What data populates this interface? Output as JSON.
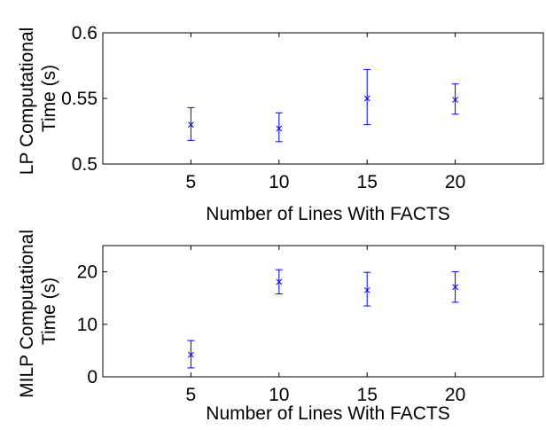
{
  "colors": {
    "series": "#0000ff",
    "axis": "#000000",
    "background": "#ffffff"
  },
  "chart_data": [
    {
      "type": "scatter",
      "title": "",
      "xlabel": "Number of Lines With FACTS",
      "ylabel": [
        "LP Computational",
        "Time (s)"
      ],
      "xlim": [
        0,
        25
      ],
      "ylim": [
        0.5,
        0.6
      ],
      "xticks": [
        5,
        10,
        15,
        20
      ],
      "xtick_labels": [
        "5",
        "10",
        "15",
        "20"
      ],
      "yticks": [
        0.5,
        0.55,
        0.6
      ],
      "ytick_labels": [
        "0.5",
        "0.55",
        "0.6"
      ],
      "grid": false,
      "marker": "x",
      "error_bars": true,
      "series": [
        {
          "x": [
            5,
            10,
            15,
            20
          ],
          "y": [
            0.53,
            0.527,
            0.55,
            0.549
          ],
          "y_low": [
            0.518,
            0.517,
            0.53,
            0.538
          ],
          "y_high": [
            0.543,
            0.539,
            0.572,
            0.561
          ]
        }
      ]
    },
    {
      "type": "scatter",
      "title": "",
      "xlabel": "Number of Lines With FACTS",
      "ylabel": [
        "MILP Computational",
        "Time (s)"
      ],
      "xlim": [
        0,
        25
      ],
      "ylim": [
        0,
        25
      ],
      "xticks": [
        5,
        10,
        15,
        20
      ],
      "xtick_labels": [
        "5",
        "10",
        "15",
        "20"
      ],
      "yticks": [
        0,
        10,
        20
      ],
      "ytick_labels": [
        "0",
        "10",
        "20"
      ],
      "grid": false,
      "marker": "x",
      "error_bars": true,
      "series": [
        {
          "x": [
            5,
            10,
            15,
            20
          ],
          "y": [
            4.2,
            18.1,
            16.5,
            17.1
          ],
          "y_low": [
            1.7,
            15.8,
            13.5,
            14.2
          ],
          "y_high": [
            6.9,
            20.4,
            19.9,
            20.0
          ]
        }
      ]
    }
  ]
}
